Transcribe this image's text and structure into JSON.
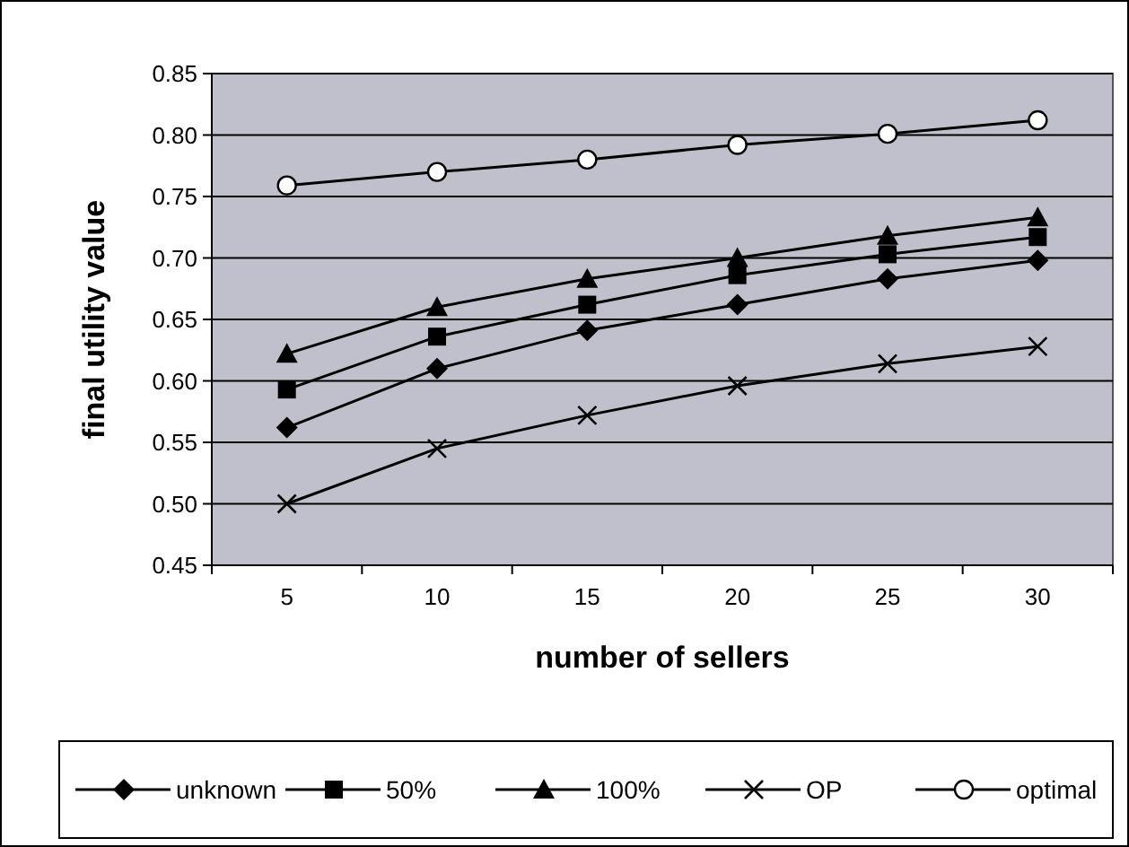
{
  "chart_data": {
    "type": "line",
    "xlabel": "number of sellers",
    "ylabel": "final utility value",
    "categories": [
      "5",
      "10",
      "15",
      "20",
      "25",
      "30"
    ],
    "ylim": [
      0.45,
      0.85
    ],
    "yticks": [
      {
        "value": 0.45,
        "label": "0.45"
      },
      {
        "value": 0.5,
        "label": "0.50"
      },
      {
        "value": 0.55,
        "label": "0.55"
      },
      {
        "value": 0.6,
        "label": "0.60"
      },
      {
        "value": 0.65,
        "label": "0.65"
      },
      {
        "value": 0.7,
        "label": "0.70"
      },
      {
        "value": 0.75,
        "label": "0.75"
      },
      {
        "value": 0.8,
        "label": "0.80"
      },
      {
        "value": 0.85,
        "label": "0.85"
      }
    ],
    "grid": "y",
    "legend": "bottom",
    "line_style": "solid",
    "series": [
      {
        "name": "unknown",
        "color": "#000000",
        "marker": "diamond",
        "values": [
          0.562,
          0.61,
          0.641,
          0.662,
          0.683,
          0.698
        ]
      },
      {
        "name": "50%",
        "color": "#000000",
        "marker": "square",
        "values": [
          0.593,
          0.636,
          0.662,
          0.686,
          0.703,
          0.717
        ]
      },
      {
        "name": "100%",
        "color": "#000000",
        "marker": "triangle",
        "values": [
          0.622,
          0.66,
          0.683,
          0.7,
          0.718,
          0.733
        ]
      },
      {
        "name": "OP",
        "color": "#000000",
        "marker": "cross",
        "values": [
          0.5,
          0.545,
          0.572,
          0.596,
          0.614,
          0.628
        ]
      },
      {
        "name": "optimal",
        "color": "#000000",
        "marker": "circle",
        "values": [
          0.759,
          0.77,
          0.78,
          0.792,
          0.801,
          0.812
        ]
      }
    ]
  }
}
